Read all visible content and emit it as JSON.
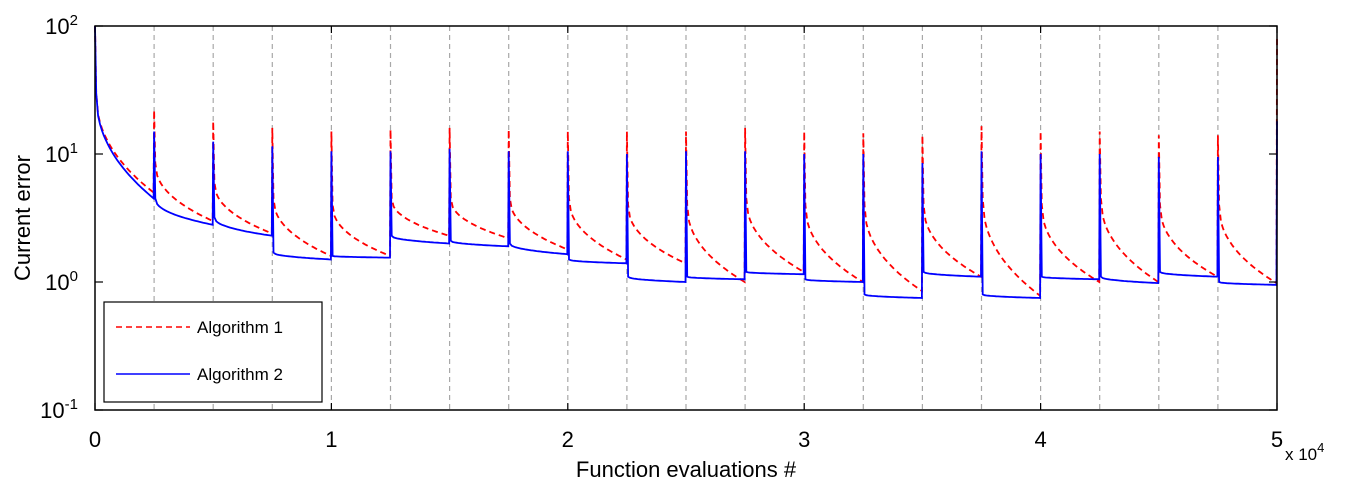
{
  "chart_data": {
    "type": "line",
    "title": "",
    "xlabel": "Function evaluations #",
    "ylabel": "Current error",
    "x_multiplier_label": "x 10",
    "x_multiplier_exponent": "4",
    "xlim": [
      0,
      50000
    ],
    "ylim": [
      0.1,
      100
    ],
    "yscale": "log",
    "grid": "vertical dashed lines at every 2500 evaluations",
    "legend_position": "bottom-left",
    "x_ticks": [
      {
        "value": 0,
        "label": "0"
      },
      {
        "value": 10000,
        "label": "1"
      },
      {
        "value": 20000,
        "label": "2"
      },
      {
        "value": 30000,
        "label": "3"
      },
      {
        "value": 40000,
        "label": "4"
      },
      {
        "value": 50000,
        "label": "5"
      }
    ],
    "y_ticks": [
      {
        "value": 0.1,
        "base": "10",
        "exp": "-1"
      },
      {
        "value": 1,
        "base": "10",
        "exp": "0"
      },
      {
        "value": 10,
        "base": "10",
        "exp": "1"
      },
      {
        "value": 100,
        "base": "10",
        "exp": "2"
      }
    ],
    "restart_interval": 2500,
    "series": [
      {
        "name": "Algorithm 1",
        "color": "#ff0000",
        "style": "dashed",
        "segments": [
          {
            "peak": 100,
            "start": 30,
            "end": 5.0
          },
          {
            "peak": 22,
            "start": 8.5,
            "end": 3.0
          },
          {
            "peak": 18,
            "start": 6.0,
            "end": 2.4
          },
          {
            "peak": 16,
            "start": 4.5,
            "end": 1.6
          },
          {
            "peak": 15,
            "start": 4.0,
            "end": 1.6
          },
          {
            "peak": 15.5,
            "start": 4.5,
            "end": 2.3
          },
          {
            "peak": 16,
            "start": 4.5,
            "end": 2.2
          },
          {
            "peak": 15.5,
            "start": 4.5,
            "end": 1.8
          },
          {
            "peak": 15,
            "start": 4.5,
            "end": 1.5
          },
          {
            "peak": 15,
            "start": 4.0,
            "end": 1.4
          },
          {
            "peak": 15,
            "start": 4.0,
            "end": 1.0
          },
          {
            "peak": 16,
            "start": 4.5,
            "end": 1.2
          },
          {
            "peak": 15,
            "start": 4.0,
            "end": 1.0
          },
          {
            "peak": 14.5,
            "start": 4.0,
            "end": 0.85
          },
          {
            "peak": 14,
            "start": 4.0,
            "end": 1.1
          },
          {
            "peak": 16.5,
            "start": 4.5,
            "end": 0.78
          },
          {
            "peak": 15,
            "start": 4.0,
            "end": 1.0
          },
          {
            "peak": 15,
            "start": 4.5,
            "end": 1.0
          },
          {
            "peak": 14,
            "start": 4.0,
            "end": 1.1
          },
          {
            "peak": 14,
            "start": 4.0,
            "end": 0.98
          }
        ],
        "final_peak": 80
      },
      {
        "name": "Algorithm 2",
        "color": "#0000ff",
        "style": "solid",
        "segments": [
          {
            "peak": 100,
            "start": 30,
            "end": 4.5
          },
          {
            "peak": 15,
            "start": 4.5,
            "end": 2.8
          },
          {
            "peak": 12.5,
            "start": 3.2,
            "end": 2.3
          },
          {
            "peak": 11.5,
            "start": 1.7,
            "end": 1.5
          },
          {
            "peak": 10.5,
            "start": 1.6,
            "end": 1.55
          },
          {
            "peak": 10.5,
            "start": 2.3,
            "end": 2.0
          },
          {
            "peak": 11,
            "start": 2.1,
            "end": 1.9
          },
          {
            "peak": 10.5,
            "start": 2.0,
            "end": 1.65
          },
          {
            "peak": 10.5,
            "start": 1.5,
            "end": 1.4
          },
          {
            "peak": 10,
            "start": 1.1,
            "end": 1.0
          },
          {
            "peak": 10.5,
            "start": 1.1,
            "end": 1.05
          },
          {
            "peak": 10.5,
            "start": 1.2,
            "end": 1.15
          },
          {
            "peak": 10,
            "start": 1.05,
            "end": 1.0
          },
          {
            "peak": 10,
            "start": 0.8,
            "end": 0.75
          },
          {
            "peak": 8.5,
            "start": 1.2,
            "end": 1.1
          },
          {
            "peak": 10.5,
            "start": 0.8,
            "end": 0.75
          },
          {
            "peak": 10,
            "start": 1.1,
            "end": 1.05
          },
          {
            "peak": 10,
            "start": 1.1,
            "end": 0.98
          },
          {
            "peak": 9.5,
            "start": 1.2,
            "end": 1.1
          },
          {
            "peak": 9.5,
            "start": 1.0,
            "end": 0.95
          }
        ],
        "final_peak": 18
      }
    ]
  }
}
